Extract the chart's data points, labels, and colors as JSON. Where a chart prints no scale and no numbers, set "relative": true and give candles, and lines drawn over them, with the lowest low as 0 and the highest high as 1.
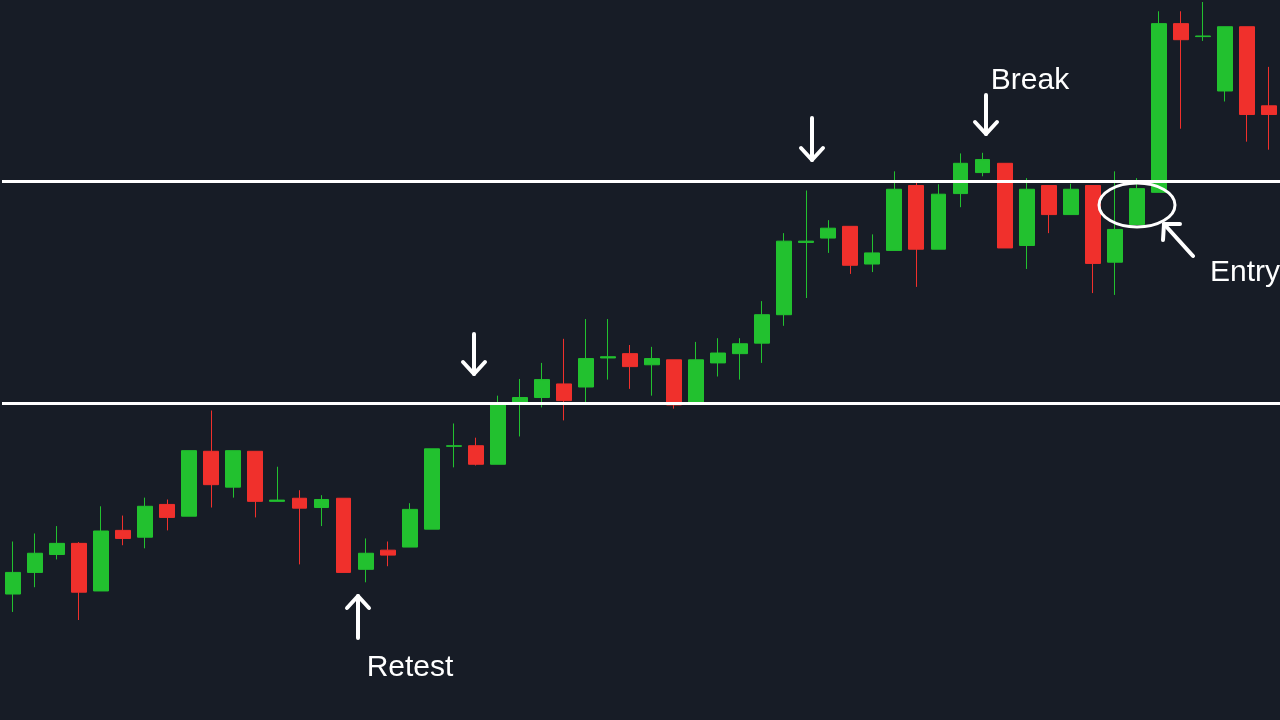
{
  "chart_data": {
    "type": "candlestick",
    "relative": true,
    "categories": [
      null,
      null,
      null,
      null,
      null,
      null,
      null,
      null,
      null,
      null,
      null,
      null,
      null,
      null,
      null,
      null,
      null,
      null,
      null,
      null,
      null,
      null,
      null,
      null,
      null,
      null,
      null,
      null,
      null,
      null,
      null,
      null,
      null,
      null,
      null,
      null,
      null,
      null,
      null,
      null,
      null,
      null,
      null,
      null,
      null,
      null,
      null,
      null,
      null,
      null,
      null,
      null,
      null,
      null,
      null,
      null,
      null,
      null
    ],
    "ohlc": [
      [
        0.042,
        0.127,
        0.013,
        0.077
      ],
      [
        0.077,
        0.14,
        0.053,
        0.108
      ],
      [
        0.106,
        0.152,
        0.098,
        0.124
      ],
      [
        0.124,
        0.126,
        0,
        0.045
      ],
      [
        0.047,
        0.184,
        0.047,
        0.144
      ],
      [
        0.145,
        0.169,
        0.121,
        0.132
      ],
      [
        0.134,
        0.198,
        0.116,
        0.184
      ],
      [
        0.187,
        0.195,
        0.145,
        0.166
      ],
      [
        0.168,
        0.274,
        0.168,
        0.274
      ],
      [
        0.273,
        0.339,
        0.182,
        0.219
      ],
      [
        0.215,
        0.274,
        0.198,
        0.274
      ],
      [
        0.273,
        0.273,
        0.166,
        0.192
      ],
      [
        0.192,
        0.248,
        0.192,
        0.194
      ],
      [
        0.197,
        0.21,
        0.09,
        0.181
      ],
      [
        0.182,
        0.202,
        0.152,
        0.195
      ],
      [
        0.197,
        0.197,
        0.077,
        0.077
      ],
      [
        0.082,
        0.132,
        0.061,
        0.108
      ],
      [
        0.113,
        0.127,
        0.087,
        0.105
      ],
      [
        0.118,
        0.189,
        0.118,
        0.179
      ],
      [
        0.147,
        0.277,
        0.147,
        0.277
      ],
      [
        0.281,
        0.318,
        0.247,
        0.282
      ],
      [
        0.282,
        0.295,
        0.25,
        0.252
      ],
      [
        0.252,
        0.363,
        0.252,
        0.35
      ],
      [
        0.35,
        0.39,
        0.297,
        0.36
      ],
      [
        0.36,
        0.416,
        0.344,
        0.389
      ],
      [
        0.382,
        0.455,
        0.323,
        0.355
      ],
      [
        0.377,
        0.487,
        0.348,
        0.423
      ],
      [
        0.424,
        0.487,
        0.389,
        0.426
      ],
      [
        0.431,
        0.445,
        0.374,
        0.41
      ],
      [
        0.413,
        0.442,
        0.363,
        0.423
      ],
      [
        0.421,
        0.421,
        0.342,
        0.348
      ],
      [
        0.35,
        0.45,
        0.35,
        0.421
      ],
      [
        0.416,
        0.456,
        0.394,
        0.432
      ],
      [
        0.431,
        0.456,
        0.389,
        0.447
      ],
      [
        0.448,
        0.516,
        0.416,
        0.494
      ],
      [
        0.494,
        0.626,
        0.476,
        0.613
      ],
      [
        0.611,
        0.695,
        0.521,
        0.613
      ],
      [
        0.618,
        0.647,
        0.594,
        0.634
      ],
      [
        0.637,
        0.637,
        0.56,
        0.574
      ],
      [
        0.576,
        0.624,
        0.563,
        0.594
      ],
      [
        0.598,
        0.726,
        0.598,
        0.697
      ],
      [
        0.703,
        0.71,
        0.539,
        0.6
      ],
      [
        0.6,
        0.705,
        0.6,
        0.689
      ],
      [
        0.69,
        0.755,
        0.668,
        0.739
      ],
      [
        0.724,
        0.756,
        0.718,
        0.745
      ],
      [
        0.739,
        0.739,
        0.602,
        0.602
      ],
      [
        0.606,
        0.715,
        0.568,
        0.697
      ],
      [
        0.703,
        0.703,
        0.626,
        0.656
      ],
      [
        0.656,
        0.706,
        0.656,
        0.697
      ],
      [
        0.703,
        0.703,
        0.529,
        0.577
      ],
      [
        0.579,
        0.726,
        0.526,
        0.632
      ],
      [
        0.64,
        0.715,
        0.64,
        0.698
      ],
      [
        0.692,
        0.985,
        0.692,
        0.965
      ],
      [
        0.965,
        0.985,
        0.795,
        0.939
      ],
      [
        0.945,
        1,
        0.937,
        0.944
      ],
      [
        0.856,
        0.96,
        0.839,
        0.96
      ],
      [
        0.96,
        0.96,
        0.774,
        0.818
      ],
      [
        0.832,
        0.895,
        0.761,
        0.818
      ]
    ],
    "colors": [
      "#22c12f",
      "#22c12f",
      "#22c12f",
      "#f0302c",
      "#22c12f",
      "#f0302c",
      "#22c12f",
      "#f0302c",
      "#22c12f",
      "#f0302c",
      "#22c12f",
      "#f0302c",
      "#22c12f",
      "#f0302c",
      "#22c12f",
      "#f0302c",
      "#22c12f",
      "#f0302c",
      "#22c12f",
      "#22c12f",
      "#22c12f",
      "#f0302c",
      "#22c12f",
      "#22c12f",
      "#22c12f",
      "#f0302c",
      "#22c12f",
      "#22c12f",
      "#f0302c",
      "#22c12f",
      "#f0302c",
      "#22c12f",
      "#22c12f",
      "#22c12f",
      "#22c12f",
      "#22c12f",
      "#22c12f",
      "#22c12f",
      "#f0302c",
      "#22c12f",
      "#22c12f",
      "#f0302c",
      "#22c12f",
      "#22c12f",
      "#22c12f",
      "#f0302c",
      "#22c12f",
      "#f0302c",
      "#22c12f",
      "#f0302c",
      "#22c12f",
      "#22c12f",
      "#22c12f",
      "#f0302c",
      "#22c12f",
      "#22c12f",
      "#f0302c",
      "#f0302c"
    ],
    "ref_lines": [
      {
        "axis": "y",
        "value": 0.71,
        "color": "#ffffff"
      },
      {
        "axis": "y",
        "value": 0.347,
        "color": "#ffffff"
      }
    ],
    "annotations": [
      "Break",
      "Retest",
      "Entry"
    ],
    "grid": false
  }
}
